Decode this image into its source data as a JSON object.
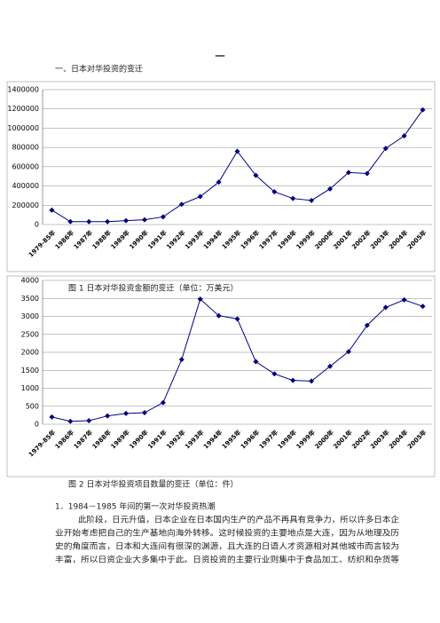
{
  "page_mark": "一",
  "heading": "一、日本对华投资的变迁",
  "chart_data": [
    {
      "type": "line",
      "caption": "图 1 日本对华投资金额的变迁（单位：万美元）",
      "categories": [
        "1979-85年",
        "1986年",
        "1987年",
        "1988年",
        "1989年",
        "1990年",
        "1991年",
        "1992年",
        "1993年",
        "1994年",
        "1995年",
        "1996年",
        "1997年",
        "1998年",
        "1999年",
        "2000年",
        "2001年",
        "2002年",
        "2003年",
        "2004年",
        "2005年"
      ],
      "values": [
        150000,
        30000,
        30000,
        30000,
        40000,
        50000,
        80000,
        210000,
        290000,
        440000,
        760000,
        510000,
        340000,
        270000,
        250000,
        370000,
        540000,
        530000,
        790000,
        920000,
        1190000
      ],
      "color": "#000080",
      "ylim": [
        0,
        1400000
      ],
      "yticks": [
        0,
        200000,
        400000,
        600000,
        800000,
        1000000,
        1200000,
        1400000
      ],
      "grid": true
    },
    {
      "type": "line",
      "caption": "图 2 日本对华投资项目数量的变迁（单位：件）",
      "categories": [
        "1979-85年",
        "1986年",
        "1987年",
        "1988年",
        "1989年",
        "1990年",
        "1991年",
        "1992年",
        "1993年",
        "1994年",
        "1995年",
        "1996年",
        "1997年",
        "1998年",
        "1999年",
        "2000年",
        "2001年",
        "2002年",
        "2003年",
        "2004年",
        "2005年"
      ],
      "values": [
        200,
        80,
        100,
        230,
        300,
        320,
        600,
        1800,
        3480,
        3020,
        2930,
        1740,
        1400,
        1220,
        1200,
        1610,
        2020,
        2750,
        3250,
        3460,
        3280
      ],
      "color": "#000080",
      "ylim": [
        0,
        4000
      ],
      "yticks": [
        0,
        500,
        1000,
        1500,
        2000,
        2500,
        3000,
        3500,
        4000
      ],
      "grid": true
    }
  ],
  "section_title": "1．1984－1985 年间的第一次对华投资热潮",
  "paragraph": [
    "此阶段，日元升值，日本企业在日本国内生产的产品不再具有竞争力，所以许多日本企",
    "业开始考虑把自己的生产基地向海外转移。这时候投资的主要地点是大连，因为从地理及历",
    "史的角度而言，日本和大连间有很深的渊源，且大连的日语人才资源相对其他城市而言较为",
    "丰富，所以日资企业大多集中于此。日资投资的主要行业则集中于食品加工、纺织和杂货等"
  ]
}
